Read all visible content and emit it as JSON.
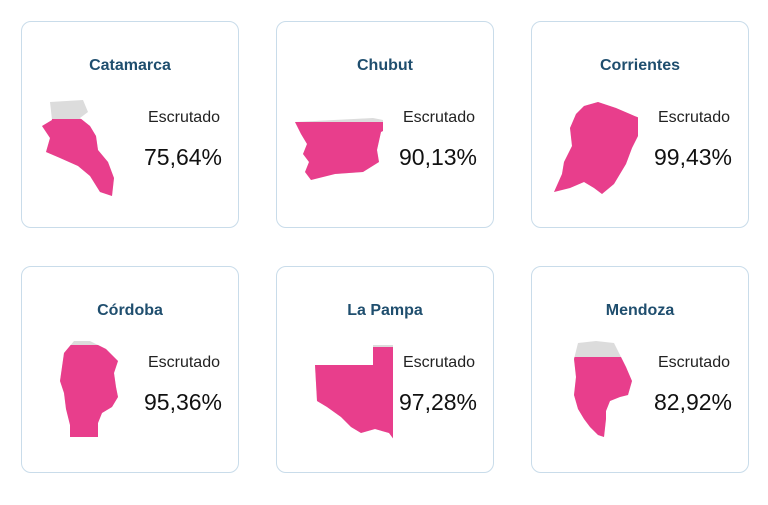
{
  "colors": {
    "filled": "#e83e8c",
    "unfilled": "#dcdcdc",
    "title": "#1f4e6e",
    "border": "#c9dcea"
  },
  "provinces": [
    {
      "name": "Catamarca",
      "label": "Escrutado",
      "value": "75,64%",
      "fraction": 0.7564,
      "icon": "catamarca-map-icon"
    },
    {
      "name": "Chubut",
      "label": "Escrutado",
      "value": "90,13%",
      "fraction": 0.9013,
      "icon": "chubut-map-icon"
    },
    {
      "name": "Corrientes",
      "label": "Escrutado",
      "value": "99,43%",
      "fraction": 0.9943,
      "icon": "corrientes-map-icon"
    },
    {
      "name": "Córdoba",
      "label": "Escrutado",
      "value": "95,36%",
      "fraction": 0.9536,
      "icon": "cordoba-map-icon"
    },
    {
      "name": "La Pampa",
      "label": "Escrutado",
      "value": "97,28%",
      "fraction": 0.9728,
      "icon": "la-pampa-map-icon"
    },
    {
      "name": "Mendoza",
      "label": "Escrutado",
      "value": "82,92%",
      "fraction": 0.8292,
      "icon": "mendoza-map-icon"
    }
  ]
}
